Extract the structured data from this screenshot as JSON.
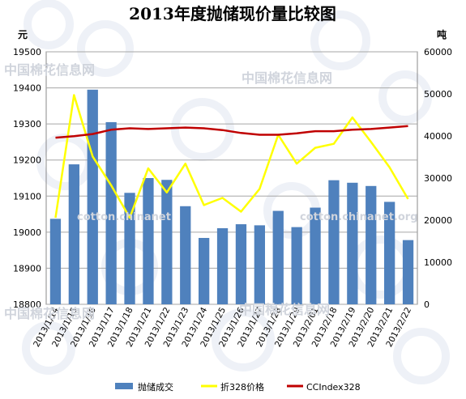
{
  "chart_data": {
    "type": "bar",
    "title": "2013年度抛储现价量比较图",
    "left_unit": "元",
    "right_unit": "吨",
    "categories": [
      "2013/1/14",
      "2013/1/15",
      "2013/1/16",
      "2013/1/17",
      "2013/1/18",
      "2013/1/21",
      "2013/1/22",
      "2013/1/23",
      "2013/1/24",
      "2013/1/25",
      "2013/1/26",
      "2013/1/27",
      "2013/1/28",
      "2013/1/29",
      "2013/2/01",
      "2013/2/18",
      "2013/2/19",
      "2013/2/20",
      "2013/2/21",
      "2013/2/22"
    ],
    "ylim_left": [
      18800,
      19500
    ],
    "yticks_left": [
      18800,
      18900,
      19000,
      19100,
      19200,
      19300,
      19400,
      19500
    ],
    "ylim_right": [
      0,
      60000
    ],
    "yticks_right": [
      0,
      10000,
      20000,
      30000,
      40000,
      50000,
      60000
    ],
    "grid": true,
    "legend_position": "bottom",
    "series": [
      {
        "name": "抛储成交",
        "kind": "bar",
        "axis": "left",
        "color": "#4f81bd",
        "values": [
          19037,
          19188,
          19395,
          19305,
          19109,
          19150,
          19145,
          19072,
          18984,
          19011,
          19022,
          19019,
          19059,
          19014,
          19068,
          19144,
          19137,
          19128,
          19084,
          18978
        ]
      },
      {
        "name": "折328价格",
        "kind": "line",
        "axis": "left",
        "color": "#ffff00",
        "values": [
          19040,
          19380,
          19210,
          19130,
          19040,
          19177,
          19110,
          19190,
          19075,
          19095,
          19057,
          19120,
          19270,
          19190,
          19234,
          19245,
          19318,
          19250,
          19180,
          19092
        ]
      },
      {
        "name": "CCIndex328",
        "kind": "line",
        "axis": "left",
        "color": "#c00000",
        "values": [
          19262,
          19266,
          19272,
          19284,
          19288,
          19286,
          19288,
          19290,
          19288,
          19283,
          19275,
          19270,
          19270,
          19274,
          19280,
          19280,
          19284,
          19286,
          19290,
          19294
        ]
      }
    ]
  },
  "watermarks": [
    "中国棉花信息网",
    "中国棉花信息网",
    "cotton.chinanet",
    "cotton.chinanet.org",
    "中国棉花信息网",
    "中国棉花信息网"
  ]
}
